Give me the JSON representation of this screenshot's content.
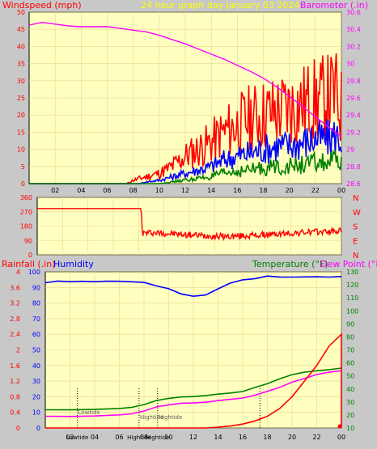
{
  "colors": {
    "background": "#c8c8c8",
    "plot_background": "#ffffc0",
    "gridline": "#e6d88c",
    "wind_speed": "#ff0000",
    "wind_gust": "#0000ff",
    "wind_avg": "#008000",
    "barometer": "#ff00ff",
    "direction": "#ff0000",
    "rainfall": "#ff0000",
    "humidity": "#0000ff",
    "temperature": "#008000",
    "dew_point": "#ff00ff",
    "tide_marker": "#000000"
  },
  "chart_data": [
    {
      "type": "line",
      "panel": "wind-barometer",
      "title": "24 hour graph day   January 03 2024",
      "left_axis_label": "Windspeed (mph)",
      "right_axis_label": "Barometer (.in)",
      "ylim_left": [
        0,
        50
      ],
      "ylim_right": [
        28.6,
        30.6
      ],
      "left_ticks": [
        0,
        5,
        10,
        15,
        20,
        25,
        30,
        35,
        40,
        45,
        50
      ],
      "right_ticks": [
        "28.6",
        "28.8",
        "29",
        "29.2",
        "29.4",
        "29.6",
        "29.8",
        "30",
        "30.2",
        "30.4",
        "30.6"
      ],
      "x_ticks": [
        "02",
        "04",
        "06",
        "08",
        "10",
        "12",
        "14",
        "16",
        "18",
        "20",
        "22",
        "00"
      ],
      "x_range_hours": [
        0,
        24
      ],
      "series": [
        {
          "key": "gust",
          "color_key": "wind_speed",
          "x": [
            0,
            7.5,
            8,
            9,
            10,
            11,
            12,
            13,
            14,
            15,
            16,
            17,
            18,
            19,
            20,
            21,
            22,
            23,
            23.5,
            24
          ],
          "y": [
            0,
            0,
            1,
            2,
            3,
            5,
            8,
            10,
            12,
            15,
            17,
            19,
            20,
            21,
            22,
            23,
            24,
            25,
            26,
            22
          ]
        },
        {
          "key": "avg",
          "color_key": "wind_gust",
          "x": [
            0,
            8.5,
            9,
            10,
            11,
            12,
            13,
            14,
            15,
            16,
            17,
            18,
            19,
            20,
            21,
            22,
            23,
            23.5,
            24
          ],
          "y": [
            0,
            0,
            0.5,
            1,
            2,
            3,
            4,
            5,
            7,
            8,
            9,
            10,
            11,
            11,
            12,
            13,
            13,
            14,
            13
          ]
        },
        {
          "key": "low",
          "color_key": "wind_avg",
          "x": [
            0,
            10,
            11,
            12,
            13,
            14,
            15,
            16,
            17,
            18,
            19,
            20,
            21,
            22,
            23,
            23.5,
            24
          ],
          "y": [
            0,
            0,
            0.5,
            1,
            1.5,
            2,
            3,
            3.5,
            4,
            4.5,
            5,
            5,
            5.5,
            6,
            6,
            6.5,
            6
          ]
        },
        {
          "key": "barometer",
          "axis": "right",
          "color_key": "barometer",
          "x": [
            0,
            1,
            2,
            3,
            4,
            5,
            6,
            7,
            8,
            9,
            10,
            11,
            12,
            13,
            14,
            15,
            16,
            17,
            18,
            19,
            20,
            21,
            22,
            23,
            24
          ],
          "y": [
            30.45,
            30.48,
            30.46,
            30.44,
            30.43,
            30.43,
            30.43,
            30.41,
            30.39,
            30.37,
            30.33,
            30.28,
            30.23,
            30.17,
            30.11,
            30.05,
            29.98,
            29.91,
            29.83,
            29.73,
            29.62,
            29.5,
            29.38,
            29.26,
            29.15
          ]
        }
      ]
    },
    {
      "type": "line",
      "panel": "wind-direction",
      "ylim": [
        0,
        360
      ],
      "left_ticks": [
        0,
        90,
        180,
        270,
        360
      ],
      "right_labels": [
        "N",
        "W",
        "S",
        "E",
        "N"
      ],
      "x": [
        0,
        8.2,
        8.3,
        9,
        12,
        15,
        18,
        21,
        24
      ],
      "y": [
        290,
        290,
        135,
        140,
        125,
        115,
        125,
        140,
        150
      ]
    },
    {
      "type": "line",
      "panel": "rain-humidity-temperature",
      "rain_label": "Rainfall (.in)",
      "humidity_label": "Humidity",
      "temperature_label": "Temperature (°F)",
      "dewpoint_label": "Dew Point (°F)",
      "rain_ticks": [
        "0",
        "0.4",
        "0.8",
        "1.2",
        "1.6",
        "2",
        "2.4",
        "2.8",
        "3.2",
        "3.6",
        "4"
      ],
      "humidity_ticks": [
        0,
        10,
        20,
        30,
        40,
        50,
        60,
        70,
        80,
        90,
        100
      ],
      "temp_ticks": [
        10,
        20,
        30,
        40,
        50,
        60,
        70,
        80,
        90,
        100,
        110,
        120,
        130
      ],
      "x_ticks": [
        "02",
        "04",
        "06",
        "08",
        "10",
        "12",
        "14",
        "16",
        "18",
        "20",
        "22",
        "00"
      ],
      "ylim_rain": [
        0,
        4
      ],
      "ylim_humidity": [
        0,
        100
      ],
      "ylim_temp": [
        10,
        130
      ],
      "series": [
        {
          "key": "humidity",
          "axis": "humidity",
          "color_key": "humidity",
          "x": [
            0,
            1,
            2,
            3,
            4,
            5,
            6,
            7,
            8,
            9,
            10,
            11,
            12,
            13,
            14,
            15,
            16,
            17,
            18,
            19,
            20,
            21,
            22,
            23,
            24
          ],
          "y": [
            93,
            94,
            94,
            94,
            94,
            94,
            94,
            94,
            93,
            91,
            89,
            86,
            84,
            85,
            89,
            93,
            95,
            96,
            97,
            97,
            97,
            97,
            97,
            97,
            97
          ]
        },
        {
          "key": "temperature",
          "axis": "temp",
          "color_key": "temperature",
          "x": [
            0,
            2,
            4,
            6,
            7,
            8,
            9,
            10,
            11,
            12,
            13,
            14,
            15,
            16,
            17,
            18,
            19,
            20,
            21,
            22,
            23,
            24
          ],
          "y": [
            24,
            24,
            24,
            25,
            26,
            28,
            31,
            33,
            34,
            34,
            35,
            36,
            37,
            38,
            41,
            44,
            48,
            51,
            53,
            54,
            55,
            56
          ]
        },
        {
          "key": "dew_point",
          "axis": "temp",
          "color_key": "dew_point",
          "x": [
            0,
            2,
            4,
            6,
            7,
            8,
            9,
            10,
            11,
            12,
            13,
            14,
            15,
            16,
            17,
            18,
            19,
            20,
            21,
            22,
            23,
            24
          ],
          "y": [
            19,
            19,
            19,
            20,
            21,
            23,
            26,
            28,
            29,
            29,
            30,
            31,
            32,
            33,
            35,
            38,
            41,
            45,
            48,
            51,
            53,
            54
          ]
        },
        {
          "key": "rainfall",
          "axis": "rain",
          "color_key": "rainfall",
          "x": [
            0,
            12,
            13,
            14,
            15,
            16,
            17,
            18,
            19,
            20,
            21,
            22,
            23,
            24,
            24
          ],
          "y": [
            0,
            0,
            0,
            0.02,
            0.05,
            0.1,
            0.18,
            0.3,
            0.5,
            0.8,
            1.2,
            1.6,
            2.1,
            2.4,
            0
          ]
        }
      ],
      "tides": [
        {
          "label": "Lowtide",
          "hour": 2.6,
          "bottom_label": "Lowtide"
        },
        {
          "label": "Hightide",
          "hour": 7.6,
          "bottom_label": "Hightide"
        },
        {
          "label": "Hightide",
          "hour": 9.1,
          "bottom_label": "Hightide"
        },
        {
          "label": "",
          "hour": 17.4,
          "bottom_label": ""
        }
      ]
    }
  ]
}
